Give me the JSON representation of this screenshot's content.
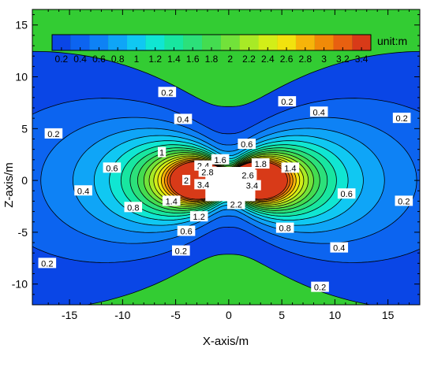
{
  "chart_data": {
    "type": "contour",
    "xlabel": "X-axis/m",
    "ylabel": "Z-axis/m",
    "xlim": [
      -18.5,
      18
    ],
    "ylim": [
      -12,
      16.5
    ],
    "xticks": [
      -15,
      -10,
      -5,
      0,
      5,
      10,
      15
    ],
    "yticks": [
      -10,
      -5,
      0,
      5,
      10,
      15
    ],
    "background_color": "#33CC33",
    "colorbar": {
      "unit": "unit:m",
      "levels": [
        "0.2",
        "0.4",
        "0.6",
        "0.8",
        "1",
        "1.2",
        "1.4",
        "1.6",
        "1.8",
        "2",
        "2.2",
        "2.4",
        "2.6",
        "2.8",
        "3",
        "3.2",
        "3.4"
      ],
      "colors": [
        "#0A46E6",
        "#0C64F0",
        "#0E82F5",
        "#0FA5F7",
        "#10C8F2",
        "#10E6D2",
        "#18E6A0",
        "#2CE07A",
        "#44DC50",
        "#72E23A",
        "#A8EA26",
        "#D2EE18",
        "#F2E20E",
        "#F6B40A",
        "#F08A08",
        "#E86010",
        "#D83A18"
      ]
    },
    "fill_bands": [
      {
        "level": 0.2,
        "color": "#0A46E6"
      },
      {
        "level": 0.4,
        "color": "#0C64F0"
      },
      {
        "level": 0.6,
        "color": "#0E82F5"
      },
      {
        "level": 0.8,
        "color": "#0FA5F7"
      },
      {
        "level": 1.0,
        "color": "#10C8F2"
      },
      {
        "level": 1.2,
        "color": "#10E6D2"
      },
      {
        "level": 1.4,
        "color": "#18E6A0"
      },
      {
        "level": 1.6,
        "color": "#2CE07A"
      },
      {
        "level": 1.8,
        "color": "#44DC50"
      },
      {
        "level": 2.0,
        "color": "#72E23A"
      },
      {
        "level": 2.2,
        "color": "#A8EA26"
      },
      {
        "level": 2.4,
        "color": "#D2EE18"
      },
      {
        "level": 2.6,
        "color": "#F2E20E"
      },
      {
        "level": 2.8,
        "color": "#F6B40A"
      },
      {
        "level": 3.0,
        "color": "#F08A08"
      },
      {
        "level": 3.2,
        "color": "#E86010"
      },
      {
        "level": 3.4,
        "color": "#D83A18"
      }
    ],
    "blank_region": {
      "x": [
        -2.2,
        2.5
      ],
      "z": [
        -2.0,
        1.3
      ]
    },
    "contour_labels": [
      {
        "text": "0.2",
        "x": -5.8,
        "z": 8.5
      },
      {
        "text": "0.2",
        "x": 5.5,
        "z": 7.6
      },
      {
        "text": "0.2",
        "x": -16.5,
        "z": 4.5
      },
      {
        "text": "0.2",
        "x": 16.3,
        "z": 6.0
      },
      {
        "text": "0.2",
        "x": -17.1,
        "z": -8.0
      },
      {
        "text": "0.2",
        "x": 16.5,
        "z": -2.0
      },
      {
        "text": "0.2",
        "x": -4.5,
        "z": -6.8
      },
      {
        "text": "0.2",
        "x": 8.6,
        "z": -10.3
      },
      {
        "text": "0.4",
        "x": -4.3,
        "z": 5.9
      },
      {
        "text": "0.4",
        "x": 8.5,
        "z": 6.6
      },
      {
        "text": "0.4",
        "x": -13.7,
        "z": -1.0
      },
      {
        "text": "0.4",
        "x": 10.4,
        "z": -6.5
      },
      {
        "text": "0.6",
        "x": 1.7,
        "z": 3.5
      },
      {
        "text": "0.6",
        "x": -11.0,
        "z": 1.2
      },
      {
        "text": "0.6",
        "x": 11.1,
        "z": -1.3
      },
      {
        "text": "0.6",
        "x": -4.0,
        "z": -4.9
      },
      {
        "text": "0.8",
        "x": -9.0,
        "z": -2.6
      },
      {
        "text": "0.8",
        "x": 5.3,
        "z": -4.6
      },
      {
        "text": "1",
        "x": -6.3,
        "z": 2.7
      },
      {
        "text": "1.2",
        "x": -2.8,
        "z": -3.5
      },
      {
        "text": "1.4",
        "x": 5.8,
        "z": 1.2
      },
      {
        "text": "1.4",
        "x": -5.4,
        "z": -2.0
      },
      {
        "text": "1.6",
        "x": -0.8,
        "z": 2.0
      },
      {
        "text": "1.8",
        "x": 3.0,
        "z": 1.6
      },
      {
        "text": "2",
        "x": -4.0,
        "z": 0.0
      },
      {
        "text": "2.2",
        "x": 0.7,
        "z": -2.3
      },
      {
        "text": "2.4",
        "x": -2.4,
        "z": 1.4
      },
      {
        "text": "2.6",
        "x": 1.8,
        "z": 0.5
      },
      {
        "text": "2.8",
        "x": -2.0,
        "z": 0.8
      },
      {
        "text": "3.4",
        "x": -2.4,
        "z": -0.4
      },
      {
        "text": "3.4",
        "x": 2.2,
        "z": -0.5
      }
    ]
  }
}
